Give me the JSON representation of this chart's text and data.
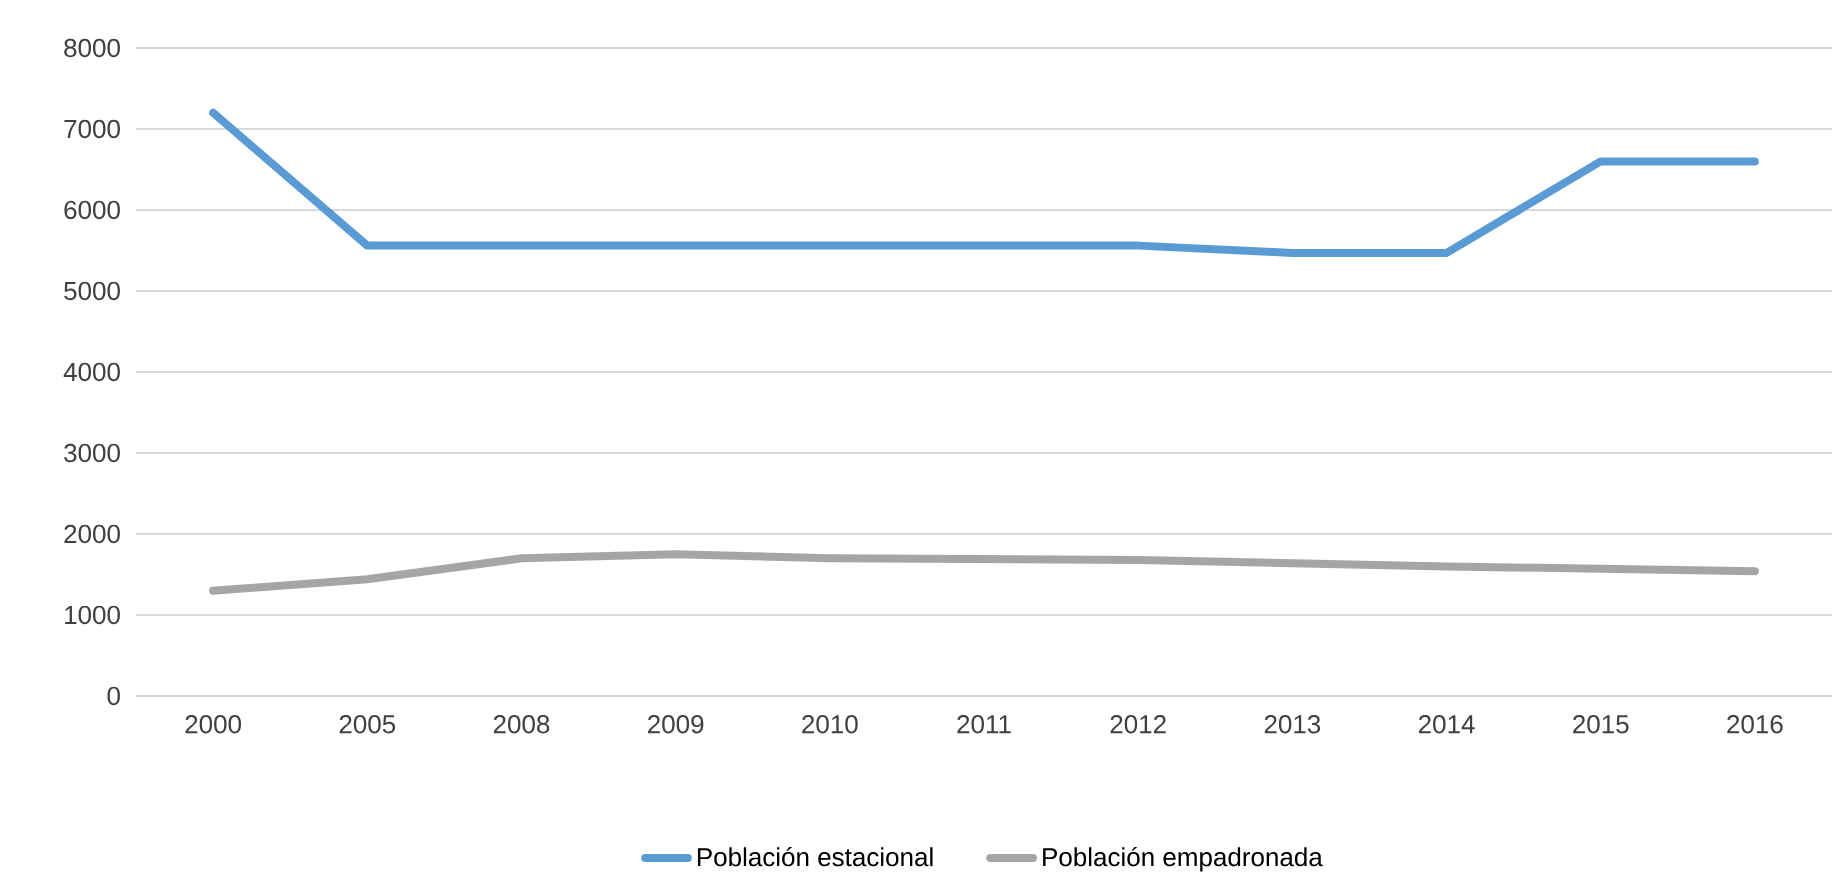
{
  "chart_data": {
    "type": "line",
    "categories": [
      "2000",
      "2005",
      "2008",
      "2009",
      "2010",
      "2011",
      "2012",
      "2013",
      "2014",
      "2015",
      "2016"
    ],
    "series": [
      {
        "name": "Población estacional",
        "color": "#5b9bd5",
        "values": [
          7200,
          5560,
          5560,
          5560,
          5560,
          5560,
          5560,
          5470,
          5470,
          6600,
          6600
        ]
      },
      {
        "name": "Población empadronada",
        "color": "#a5a5a5",
        "values": [
          1300,
          1440,
          1700,
          1750,
          1700,
          1690,
          1680,
          1640,
          1600,
          1570,
          1540
        ]
      }
    ],
    "ylim": [
      0,
      8000
    ],
    "yticks": [
      0,
      1000,
      2000,
      3000,
      4000,
      5000,
      6000,
      7000,
      8000
    ],
    "grid": "y",
    "legend": "bottom",
    "marker": "none",
    "line_style": "solid"
  }
}
